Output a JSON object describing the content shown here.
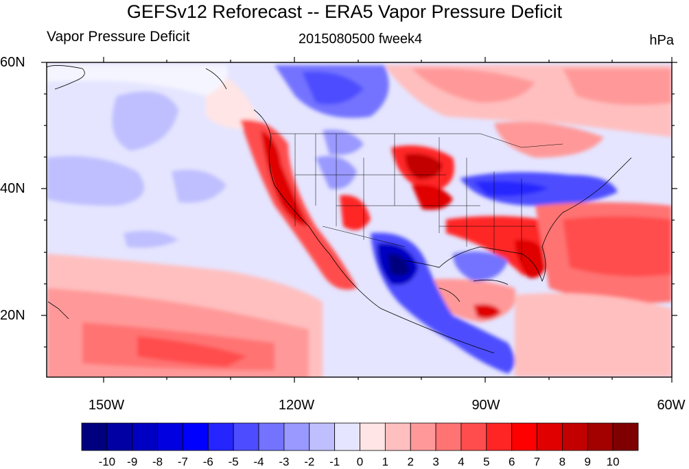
{
  "map": {
    "title": "GEFSv12 Reforecast -- ERA5 Vapor Pressure Deficit",
    "left_string": "Vapor Pressure Deficit",
    "center_string": "2015080500 fweek4",
    "right_string": "hPa",
    "lat_ticks": [
      "60N",
      "40N",
      "20N"
    ],
    "lon_ticks": [
      "150W",
      "120W",
      "90W",
      "60W"
    ],
    "colorbar": {
      "labels": [
        "-10",
        "-9",
        "-8",
        "-7",
        "-6",
        "-5",
        "-4",
        "-3",
        "-2",
        "-1",
        "0",
        "1",
        "2",
        "3",
        "4",
        "5",
        "6",
        "7",
        "8",
        "9",
        "10"
      ],
      "colors": [
        "#00007f",
        "#0000a3",
        "#0000c2",
        "#0000e0",
        "#0000ff",
        "#2525ff",
        "#4d4dff",
        "#7373ff",
        "#9999ff",
        "#bfbfff",
        "#e5e5ff",
        "#ffe5e5",
        "#ffbfbf",
        "#ff9999",
        "#ff7373",
        "#ff4d4d",
        "#ff2525",
        "#ff0000",
        "#e00000",
        "#c20000",
        "#a30000",
        "#7f0000"
      ]
    },
    "features": [
      "contour-field",
      "state-boundaries",
      "coastlines"
    ]
  }
}
